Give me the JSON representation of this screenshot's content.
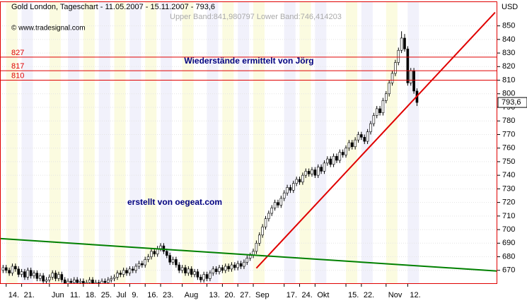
{
  "chart_data": {
    "type": "candlestick",
    "title": "Gold London, Tageschart - 11.05.2007 - 15.11.2007 - 793,6",
    "subtitle": "© www.tradesignal.com",
    "band_info": "Upper Band:841,980797 Lower Band:746,414203",
    "y_axis_label": "USD",
    "annotations": [
      "Wiederstände ermittelt von Jörg",
      "erstellt von oegeat.com"
    ],
    "last_price": {
      "value": 793.6,
      "label": "793,6"
    },
    "levels": [
      827,
      817,
      810
    ],
    "level_color": "#e00000",
    "trendlines": [
      {
        "color": "#e00000",
        "start": [
          82,
          671.6
        ],
        "end": [
          159.3,
          859.9
        ]
      },
      {
        "color": "#008000",
        "start": [
          -1,
          693.4
        ],
        "end": [
          160,
          669.5
        ]
      }
    ],
    "up_color": "#ffffff",
    "down_color": "#000000",
    "xlim": [
      -1,
      160
    ],
    "xticks": [
      {
        "value": 1,
        "label": "14."
      },
      {
        "value": 6,
        "label": "21."
      },
      {
        "value": 15,
        "label": "Jun"
      },
      {
        "value": 21,
        "label": "11."
      },
      {
        "value": 26,
        "label": "18."
      },
      {
        "value": 31,
        "label": "25."
      },
      {
        "value": 36,
        "label": "Jul"
      },
      {
        "value": 41,
        "label": "9."
      },
      {
        "value": 46,
        "label": "16."
      },
      {
        "value": 51,
        "label": "23."
      },
      {
        "value": 58,
        "label": "Aug"
      },
      {
        "value": 66,
        "label": "13."
      },
      {
        "value": 71,
        "label": "20."
      },
      {
        "value": 76,
        "label": "27."
      },
      {
        "value": 81,
        "label": "Sep"
      },
      {
        "value": 91,
        "label": "17."
      },
      {
        "value": 96,
        "label": "24."
      },
      {
        "value": 101,
        "label": "Okt"
      },
      {
        "value": 111,
        "label": "15."
      },
      {
        "value": 116,
        "label": "22."
      },
      {
        "value": 124,
        "label": "Nov"
      },
      {
        "value": 131,
        "label": "12."
      }
    ],
    "ylim": [
      660,
      868
    ],
    "yticks": [
      670,
      680,
      690,
      700,
      710,
      720,
      730,
      740,
      750,
      760,
      770,
      780,
      790,
      800,
      810,
      820,
      830,
      840,
      850
    ],
    "grid": true,
    "open": [
      670,
      672,
      670,
      668,
      673,
      671,
      667,
      669,
      665,
      670,
      666,
      668,
      664,
      666,
      662,
      663,
      665,
      668,
      664,
      667,
      663,
      660,
      662,
      661,
      663,
      661,
      662,
      660,
      661,
      663,
      660,
      661,
      660,
      662,
      661,
      663,
      664,
      665,
      668,
      667,
      670,
      668,
      671,
      670,
      673,
      675,
      674,
      678,
      680,
      684,
      682,
      686,
      688,
      684,
      681,
      676,
      678,
      674,
      670,
      672,
      668,
      671,
      667,
      669,
      665,
      663,
      667,
      664,
      668,
      671,
      669,
      672,
      670,
      673,
      671,
      674,
      672,
      675,
      673,
      676,
      679,
      681,
      684,
      690,
      696,
      702,
      708,
      712,
      716,
      720,
      718,
      723,
      727,
      731,
      729,
      734,
      737,
      735,
      740,
      743,
      741,
      744,
      740,
      746,
      743,
      749,
      752,
      748,
      754,
      751,
      757,
      755,
      760,
      764,
      761,
      766,
      770,
      768,
      765,
      772,
      778,
      784,
      789,
      786,
      795,
      800,
      808,
      815,
      823,
      832,
      841,
      833,
      808,
      817,
      802
    ],
    "high": [
      674,
      674,
      672,
      675,
      675,
      673,
      671,
      671,
      672,
      672,
      670,
      670,
      668,
      668,
      665,
      667,
      670,
      670,
      669,
      669,
      665,
      664,
      664,
      665,
      665,
      664,
      664,
      663,
      665,
      665,
      663,
      663,
      664,
      664,
      665,
      666,
      667,
      670,
      670,
      672,
      672,
      673,
      673,
      675,
      677,
      677,
      680,
      682,
      686,
      686,
      688,
      690,
      690,
      686,
      683,
      680,
      680,
      676,
      674,
      674,
      673,
      673,
      671,
      671,
      667,
      669,
      669,
      670,
      673,
      673,
      674,
      674,
      675,
      675,
      676,
      676,
      677,
      677,
      678,
      681,
      683,
      686,
      692,
      698,
      704,
      710,
      714,
      718,
      722,
      722,
      725,
      729,
      733,
      733,
      736,
      739,
      739,
      742,
      745,
      745,
      746,
      746,
      748,
      748,
      751,
      754,
      754,
      756,
      756,
      759,
      759,
      762,
      766,
      766,
      768,
      772,
      772,
      770,
      774,
      780,
      786,
      791,
      791,
      797,
      802,
      810,
      817,
      825,
      834,
      846,
      844,
      835,
      819,
      819,
      804
    ],
    "low": [
      668,
      668,
      666,
      666,
      669,
      665,
      665,
      663,
      663,
      664,
      664,
      662,
      662,
      660,
      660,
      661,
      663,
      662,
      662,
      661,
      658,
      658,
      659,
      659,
      659,
      659,
      658,
      658,
      659,
      658,
      658,
      658,
      658,
      659,
      659,
      661,
      662,
      663,
      665,
      665,
      666,
      666,
      668,
      668,
      671,
      672,
      672,
      676,
      678,
      680,
      680,
      684,
      682,
      679,
      674,
      674,
      672,
      668,
      668,
      666,
      666,
      665,
      665,
      663,
      661,
      661,
      662,
      662,
      666,
      667,
      667,
      668,
      668,
      669,
      669,
      670,
      670,
      671,
      671,
      674,
      677,
      679,
      682,
      688,
      694,
      700,
      706,
      710,
      714,
      716,
      716,
      721,
      725,
      727,
      727,
      732,
      733,
      733,
      738,
      739,
      739,
      738,
      738,
      741,
      741,
      747,
      746,
      746,
      749,
      749,
      753,
      753,
      758,
      759,
      759,
      764,
      766,
      763,
      763,
      770,
      776,
      782,
      784,
      784,
      793,
      798,
      806,
      813,
      821,
      830,
      831,
      806,
      806,
      800,
      791
    ],
    "close": [
      672,
      670,
      668,
      673,
      671,
      667,
      669,
      665,
      670,
      666,
      668,
      664,
      666,
      662,
      663,
      665,
      668,
      664,
      667,
      663,
      660,
      662,
      661,
      663,
      661,
      662,
      660,
      661,
      663,
      660,
      661,
      660,
      662,
      661,
      663,
      664,
      665,
      668,
      667,
      670,
      668,
      671,
      670,
      673,
      675,
      674,
      678,
      680,
      684,
      682,
      686,
      688,
      684,
      681,
      676,
      678,
      674,
      670,
      672,
      668,
      671,
      667,
      669,
      665,
      663,
      667,
      664,
      668,
      671,
      669,
      672,
      670,
      673,
      671,
      674,
      672,
      675,
      673,
      676,
      679,
      681,
      684,
      690,
      696,
      702,
      708,
      712,
      716,
      720,
      718,
      723,
      727,
      731,
      729,
      734,
      737,
      735,
      740,
      743,
      741,
      744,
      740,
      746,
      743,
      749,
      752,
      748,
      754,
      751,
      757,
      755,
      760,
      764,
      761,
      766,
      770,
      768,
      765,
      772,
      778,
      784,
      789,
      786,
      795,
      800,
      808,
      815,
      823,
      832,
      841,
      833,
      808,
      817,
      802,
      793.6
    ]
  }
}
